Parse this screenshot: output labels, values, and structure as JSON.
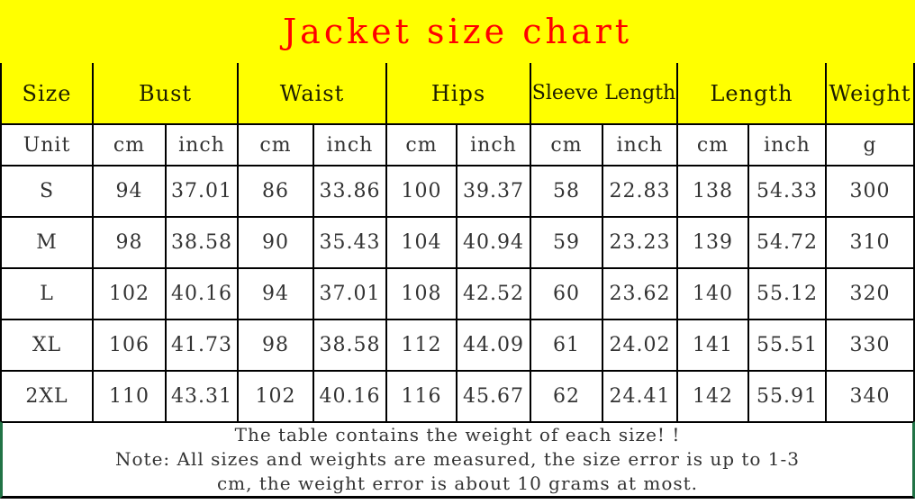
{
  "title": "Jacket size chart",
  "colors": {
    "band_background": "#ffff00",
    "title_text": "#ff0000",
    "grid_border": "#000000",
    "footer_side_border": "#217346",
    "table_text": "#333333"
  },
  "table": {
    "header_groups": [
      {
        "label": "Size",
        "span": 1
      },
      {
        "label": "Bust",
        "span": 2
      },
      {
        "label": "Waist",
        "span": 2
      },
      {
        "label": "Hips",
        "span": 2
      },
      {
        "label": "Sleeve Length",
        "span": 2
      },
      {
        "label": "Length",
        "span": 2
      },
      {
        "label": "Weight",
        "span": 1
      }
    ],
    "unit_row": [
      "Unit",
      "cm",
      "inch",
      "cm",
      "inch",
      "cm",
      "inch",
      "cm",
      "inch",
      "cm",
      "inch",
      "g"
    ],
    "rows": [
      [
        "S",
        "94",
        "37.01",
        "86",
        "33.86",
        "100",
        "39.37",
        "58",
        "22.83",
        "138",
        "54.33",
        "300"
      ],
      [
        "M",
        "98",
        "38.58",
        "90",
        "35.43",
        "104",
        "40.94",
        "59",
        "23.23",
        "139",
        "54.72",
        "310"
      ],
      [
        "L",
        "102",
        "40.16",
        "94",
        "37.01",
        "108",
        "42.52",
        "60",
        "23.62",
        "140",
        "55.12",
        "320"
      ],
      [
        "XL",
        "106",
        "41.73",
        "98",
        "38.58",
        "112",
        "44.09",
        "61",
        "24.02",
        "141",
        "55.51",
        "330"
      ],
      [
        "2XL",
        "110",
        "43.31",
        "102",
        "40.16",
        "116",
        "45.67",
        "62",
        "24.41",
        "142",
        "55.91",
        "340"
      ]
    ]
  },
  "footer": {
    "lines": [
      "The table contains the weight of each size! !",
      "Note: All sizes and weights are measured, the size error is up to 1-3",
      "cm, the weight error is about 10 grams at most."
    ]
  }
}
